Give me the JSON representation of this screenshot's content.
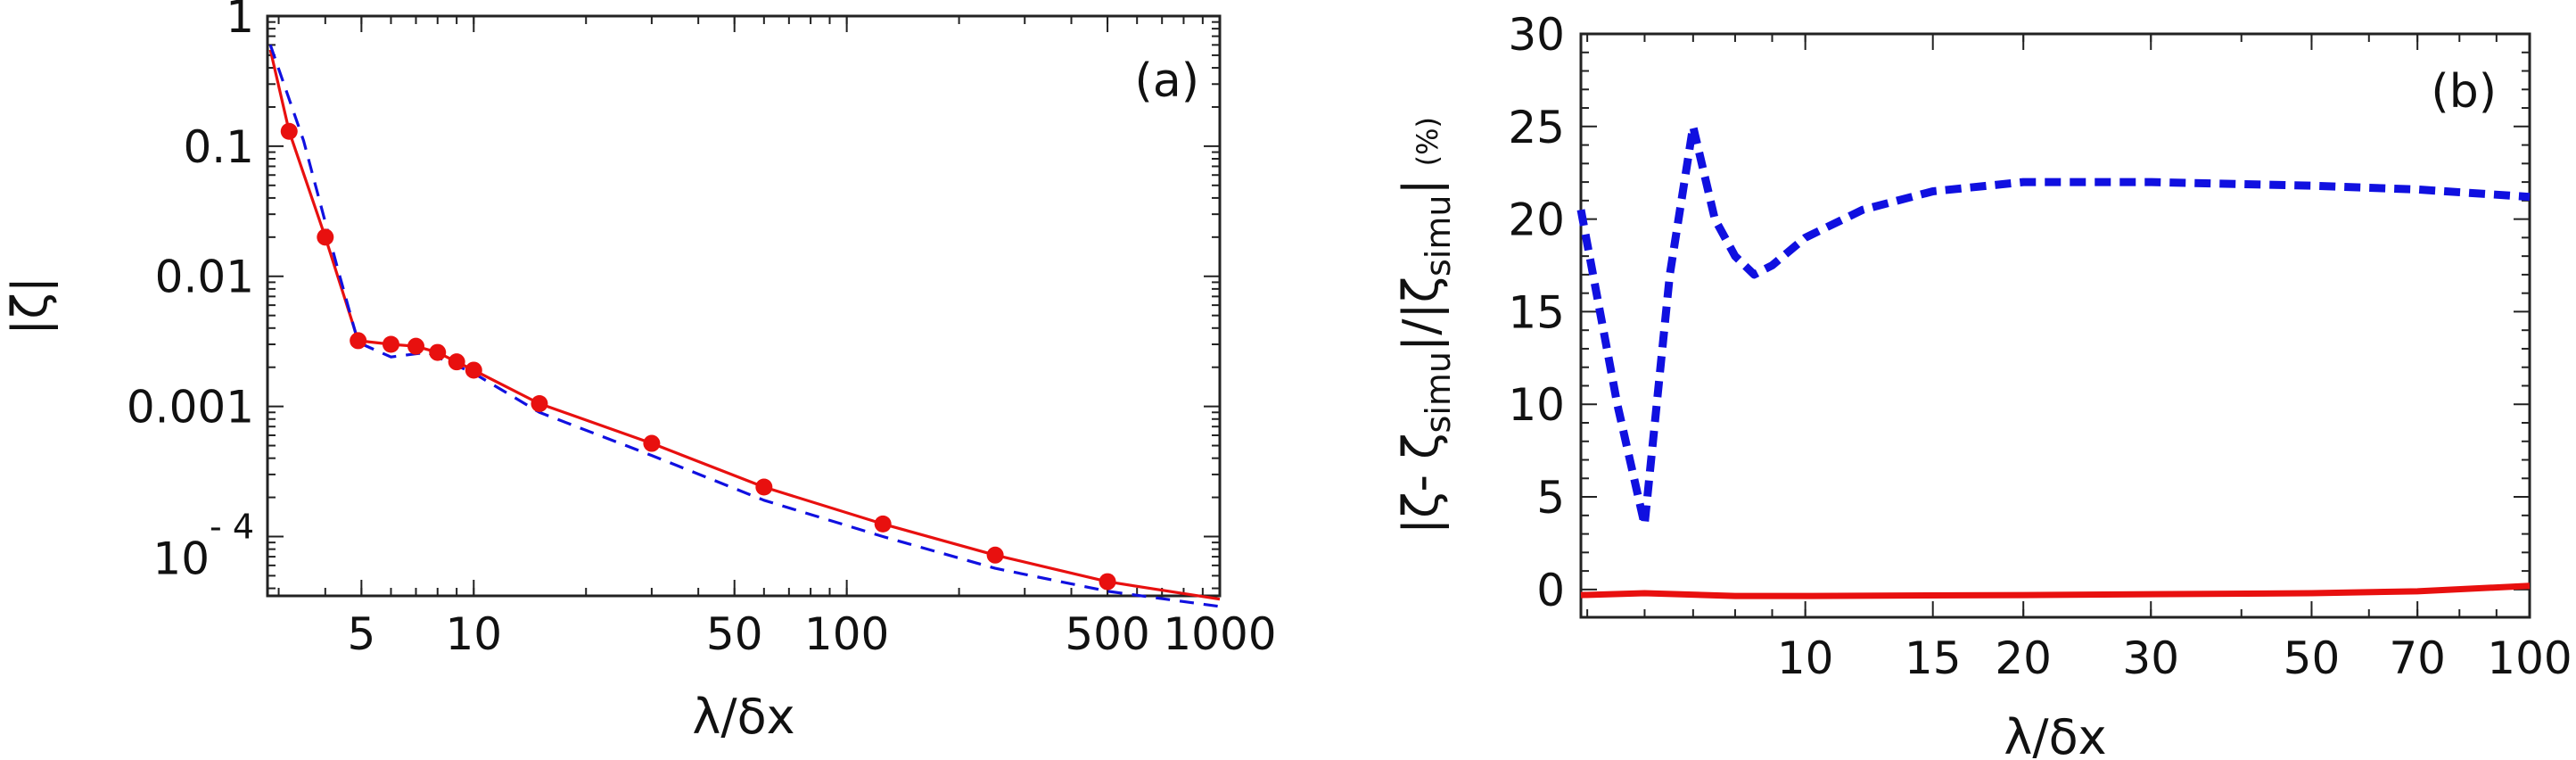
{
  "chart_data": [
    {
      "id": "panel-a",
      "type": "line",
      "panel_label": "(a)",
      "xlabel": "λ/δx",
      "ylabel": "|ζ|",
      "xscale": "log",
      "yscale": "log",
      "xlim": [
        2.8,
        1000
      ],
      "ylim": [
        3.5e-05,
        1
      ],
      "xticks": [
        {
          "value": 5,
          "label": "5"
        },
        {
          "value": 10,
          "label": "10"
        },
        {
          "value": 50,
          "label": "50"
        },
        {
          "value": 100,
          "label": "100"
        },
        {
          "value": 500,
          "label": "500"
        },
        {
          "value": 1000,
          "label": "1000"
        }
      ],
      "yticks": [
        {
          "value": 1,
          "label": "1"
        },
        {
          "value": 0.1,
          "label": "0.1"
        },
        {
          "value": 0.01,
          "label": "0.01"
        },
        {
          "value": 0.001,
          "label": "0.001"
        },
        {
          "value": 0.0001,
          "label": "10",
          "exponent": "- 4"
        }
      ],
      "series": [
        {
          "name": "solid-red",
          "style": "solid",
          "color": "#e8100f",
          "x": [
            2.85,
            3.2,
            4,
            4.9,
            6,
            7,
            8,
            9,
            10,
            15,
            30,
            60,
            125,
            250,
            500,
            1000
          ],
          "y": [
            0.55,
            0.13,
            0.02,
            0.0032,
            0.003,
            0.0029,
            0.0026,
            0.0022,
            0.0019,
            0.00105,
            0.00052,
            0.00024,
            0.000125,
            7.2e-05,
            4.5e-05,
            3.3e-05
          ]
        },
        {
          "name": "dashed-blue",
          "style": "dashed",
          "color": "#1010e0",
          "x": [
            2.85,
            3.5,
            4.3,
            4.9,
            6,
            7.5,
            10,
            15,
            30,
            60,
            125,
            250,
            500,
            1000
          ],
          "y": [
            0.6,
            0.11,
            0.012,
            0.0031,
            0.0024,
            0.0026,
            0.0018,
            0.0009,
            0.00042,
            0.00019,
            0.0001,
            5.7e-05,
            3.8e-05,
            2.9e-05
          ]
        },
        {
          "name": "markers-red",
          "style": "markers",
          "color": "#e8100f",
          "x": [
            3.2,
            4,
            4.9,
            6,
            7,
            8,
            9,
            10,
            15,
            30,
            60,
            125,
            250,
            500
          ],
          "y": [
            0.13,
            0.02,
            0.0032,
            0.003,
            0.0029,
            0.0026,
            0.0022,
            0.0019,
            0.00105,
            0.00052,
            0.00024,
            0.000125,
            7.2e-05,
            4.5e-05
          ]
        }
      ]
    },
    {
      "id": "panel-b",
      "type": "line",
      "panel_label": "(b)",
      "xlabel": "λ/δx",
      "ylabel_main": "|ζ- ζ",
      "ylabel_sub1": "simu",
      "ylabel_mid": "|/|ζ",
      "ylabel_sub2": "simu",
      "ylabel_end": "|",
      "ylabel_unit": "(%)",
      "xscale": "log",
      "yscale": "linear",
      "xlim": [
        4.9,
        100
      ],
      "ylim": [
        -1.5,
        30
      ],
      "xticks": [
        {
          "value": 10,
          "label": "10"
        },
        {
          "value": 15,
          "label": "15"
        },
        {
          "value": 20,
          "label": "20"
        },
        {
          "value": 30,
          "label": "30"
        },
        {
          "value": 50,
          "label": "50"
        },
        {
          "value": 70,
          "label": "70"
        },
        {
          "value": 100,
          "label": "100"
        }
      ],
      "yticks": [
        {
          "value": 0,
          "label": "0"
        },
        {
          "value": 5,
          "label": "5"
        },
        {
          "value": 10,
          "label": "10"
        },
        {
          "value": 15,
          "label": "15"
        },
        {
          "value": 20,
          "label": "20"
        },
        {
          "value": 25,
          "label": "25"
        },
        {
          "value": 30,
          "label": "30"
        }
      ],
      "series": [
        {
          "name": "dashed-blue",
          "style": "dashed",
          "color": "#1010e0",
          "x": [
            4.9,
            5.5,
            6,
            6.5,
            7,
            7.5,
            8,
            8.5,
            9,
            10,
            12,
            15,
            20,
            30,
            50,
            70,
            100
          ],
          "y": [
            20.5,
            10,
            3.5,
            17,
            25,
            20,
            18,
            17,
            17.5,
            19,
            20.5,
            21.5,
            22,
            22,
            21.8,
            21.6,
            21.2
          ]
        },
        {
          "name": "solid-red",
          "style": "solid",
          "color": "#e8100f",
          "x": [
            4.9,
            6,
            8,
            10,
            20,
            50,
            70,
            100
          ],
          "y": [
            -0.3,
            -0.2,
            -0.35,
            -0.35,
            -0.3,
            -0.2,
            -0.1,
            0.2
          ]
        }
      ]
    }
  ]
}
